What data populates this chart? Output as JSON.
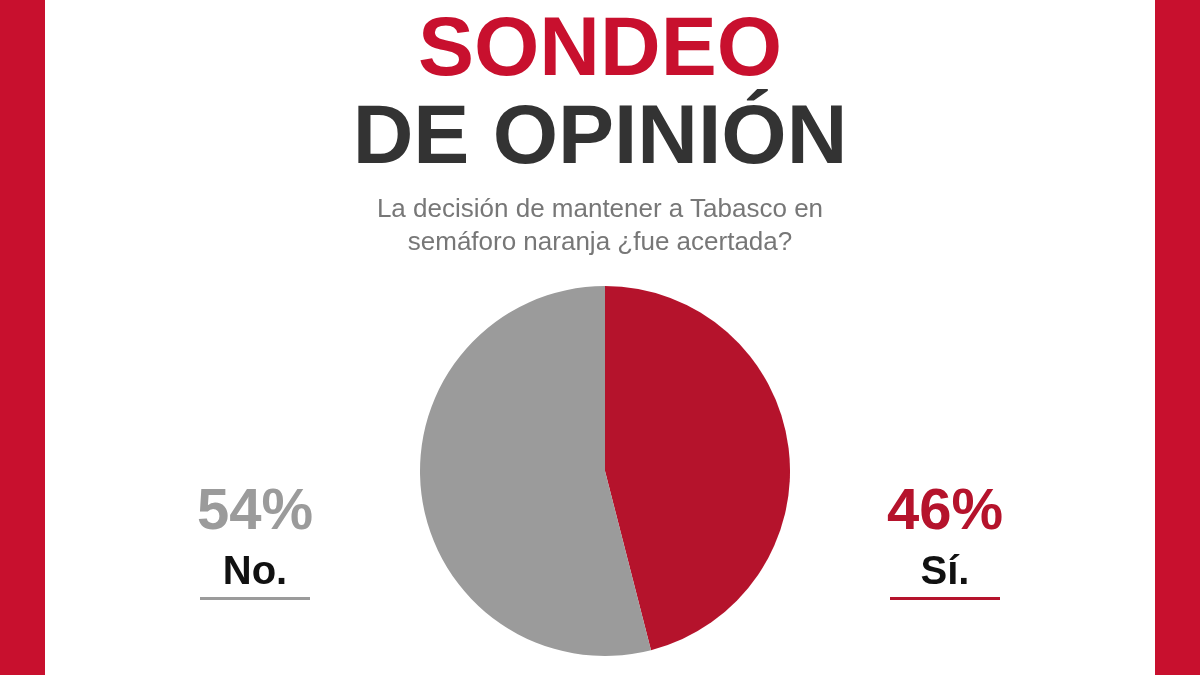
{
  "chart_data": {
    "type": "pie",
    "title": "SONDEO",
    "subtitle": "DE OPINIÓN",
    "annotations": [
      "La decisión de mantener a Tabasco en semáforo naranja ¿fue acertada?"
    ],
    "categories": [
      "Sí.",
      "No."
    ],
    "values": [
      46,
      54
    ],
    "colors": [
      "#b5132c",
      "#9b9b9b"
    ],
    "value_labels": [
      "46%",
      "54%"
    ]
  }
}
